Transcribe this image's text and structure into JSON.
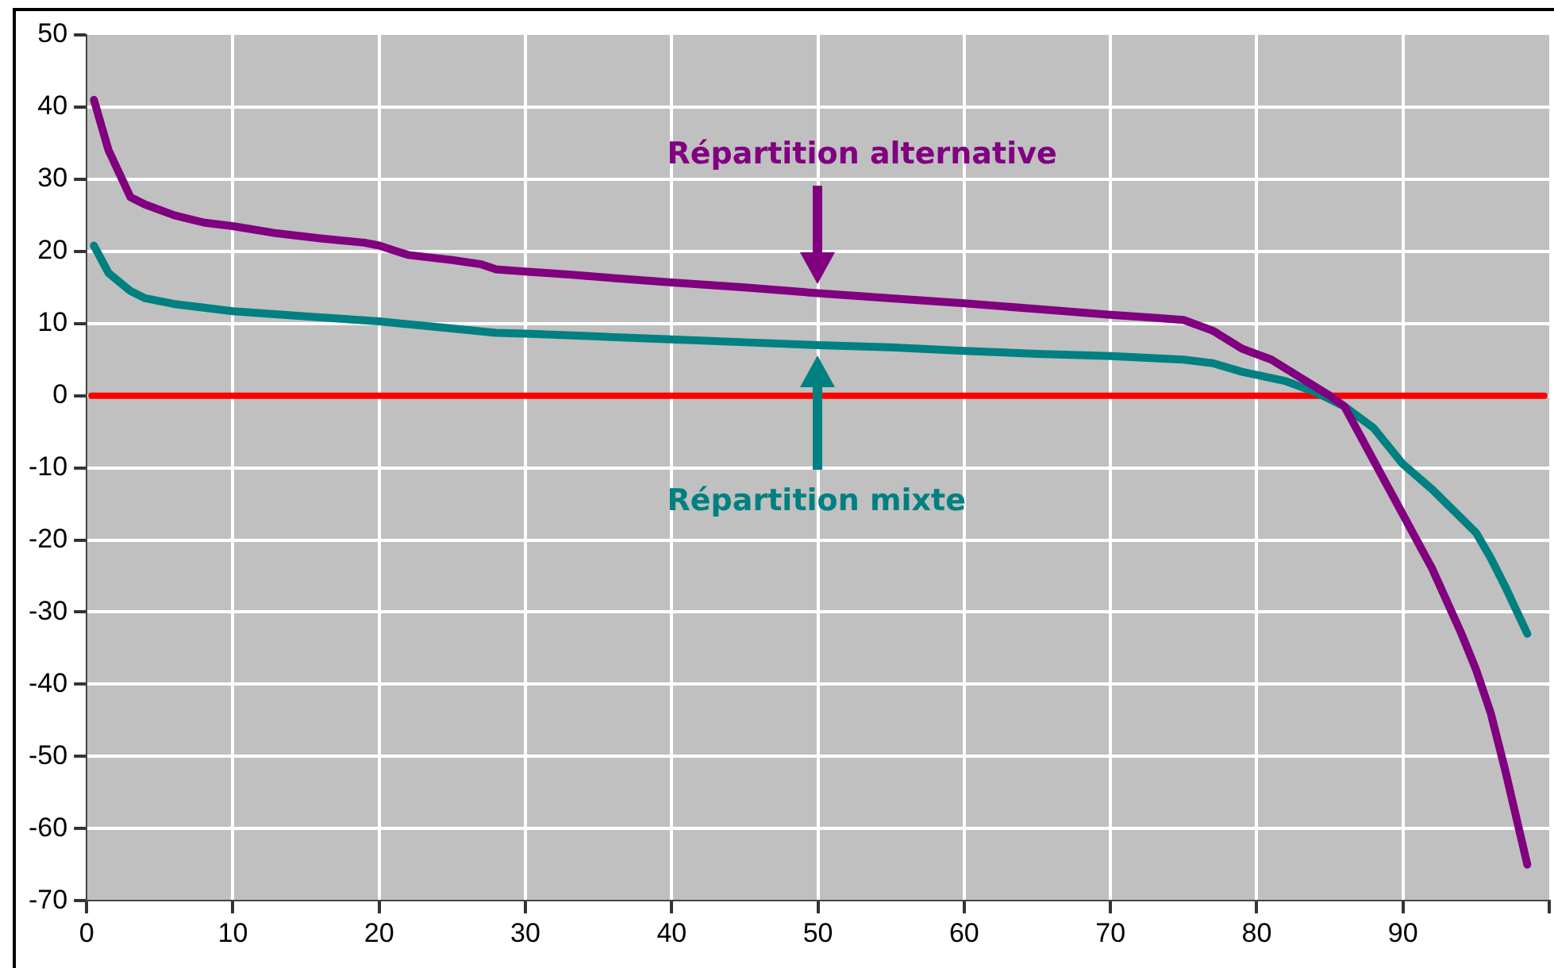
{
  "chart_data": {
    "type": "line",
    "xlim": [
      0,
      100
    ],
    "ylim": [
      -70,
      50
    ],
    "xticks": [
      0,
      10,
      20,
      30,
      40,
      50,
      60,
      70,
      80,
      90,
      {
        "value": 100,
        "label": null
      }
    ],
    "yticks": [
      -70,
      -60,
      -50,
      -40,
      -30,
      -20,
      -10,
      0,
      10,
      20,
      30,
      40,
      50
    ],
    "grid": true,
    "legend": false,
    "marker": "none",
    "line_style": "solid",
    "ref_lines": [
      {
        "axis": "y",
        "value": 0,
        "color": "#ff0000"
      }
    ],
    "series": [
      {
        "name": "Répartition alternative",
        "color": "#800080",
        "x": [
          0.5,
          1.5,
          3,
          4,
          6,
          8,
          10,
          13,
          16,
          19,
          20,
          22,
          25,
          27,
          28,
          30,
          33,
          36,
          40,
          45,
          50,
          55,
          60,
          65,
          70,
          73,
          75,
          77,
          79,
          81,
          83,
          85,
          86,
          88,
          90,
          92,
          94,
          95,
          96,
          97,
          98.5
        ],
        "values": [
          41,
          34,
          27.5,
          26.5,
          25,
          24,
          23.5,
          22.5,
          21.8,
          21.2,
          20.8,
          19.5,
          18.8,
          18.2,
          17.5,
          17.2,
          16.8,
          16.3,
          15.7,
          15,
          14.2,
          13.5,
          12.8,
          12,
          11.2,
          10.8,
          10.5,
          9,
          6.5,
          5,
          2.5,
          0,
          -1.5,
          -9,
          -16.5,
          -24,
          -33,
          -38,
          -44,
          -52,
          -65
        ]
      },
      {
        "name": "Répartition mixte",
        "color": "#008080",
        "x": [
          0.5,
          1.5,
          3,
          4,
          6,
          8,
          10,
          15,
          20,
          25,
          28,
          30,
          35,
          40,
          45,
          50,
          55,
          60,
          65,
          70,
          75,
          77,
          79,
          82,
          84,
          86,
          88,
          90,
          92,
          94,
          95,
          96,
          97,
          98.5
        ],
        "values": [
          20.8,
          17,
          14.5,
          13.5,
          12.7,
          12.2,
          11.7,
          11,
          10.3,
          9.3,
          8.7,
          8.6,
          8.2,
          7.8,
          7.4,
          7,
          6.7,
          6.2,
          5.8,
          5.5,
          5,
          4.5,
          3.3,
          2,
          0.5,
          -1.5,
          -4.5,
          -9.5,
          -13,
          -17,
          -19,
          -22.5,
          -26.5,
          -33
        ]
      }
    ]
  }
}
